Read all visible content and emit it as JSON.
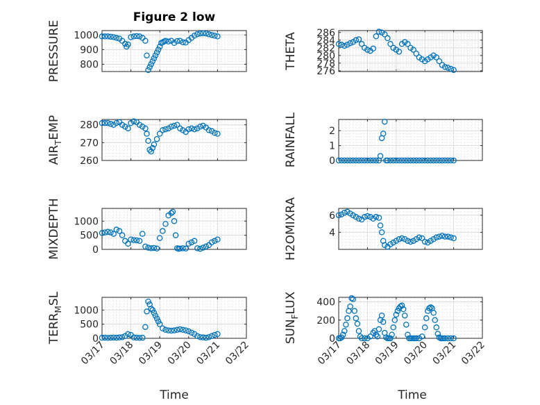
{
  "figure": {
    "title": "Figure 2 low",
    "xlabel": "Time",
    "marker_color": "#0072bd",
    "x_ticks": [
      "03/17",
      "03/18",
      "03/19",
      "03/20",
      "03/21",
      "03/22"
    ]
  },
  "chart_data": [
    {
      "id": "pressure",
      "type": "scatter",
      "ylabel": "PRESSURE",
      "ylim": [
        750,
        1030
      ],
      "yticks": [
        800,
        900,
        1000
      ],
      "xlim": [
        0,
        5
      ],
      "x": [
        0,
        0.1,
        0.2,
        0.3,
        0.4,
        0.5,
        0.6,
        0.7,
        0.8,
        0.85,
        0.9,
        1.0,
        1.1,
        1.2,
        1.3,
        1.4,
        1.5,
        1.55,
        1.6,
        1.65,
        1.7,
        1.75,
        1.8,
        1.85,
        1.9,
        1.95,
        2.0,
        2.05,
        2.1,
        2.15,
        2.2,
        2.3,
        2.4,
        2.5,
        2.6,
        2.7,
        2.8,
        2.9,
        3.0,
        3.1,
        3.2,
        3.3,
        3.4,
        3.5,
        3.6,
        3.7,
        3.8,
        3.9,
        4.0
      ],
      "y": [
        990,
        990,
        990,
        988,
        985,
        980,
        975,
        960,
        940,
        920,
        935,
        985,
        990,
        992,
        990,
        980,
        960,
        860,
        760,
        780,
        800,
        820,
        840,
        860,
        880,
        900,
        920,
        945,
        950,
        955,
        960,
        955,
        960,
        945,
        958,
        960,
        950,
        948,
        965,
        980,
        995,
        1005,
        1010,
        1012,
        1010,
        1005,
        1000,
        995,
        990
      ]
    },
    {
      "id": "theta",
      "type": "scatter",
      "ylabel": "THETA",
      "ylim": [
        275.8,
        286.5
      ],
      "yticks": [
        276,
        278,
        280,
        282,
        284,
        286
      ],
      "xlim": [
        0,
        5
      ],
      "x": [
        0,
        0.1,
        0.2,
        0.3,
        0.4,
        0.5,
        0.6,
        0.7,
        0.8,
        0.9,
        1.0,
        1.1,
        1.2,
        1.3,
        1.4,
        1.5,
        1.6,
        1.7,
        1.8,
        1.9,
        2.0,
        2.1,
        2.2,
        2.3,
        2.4,
        2.5,
        2.6,
        2.7,
        2.8,
        2.9,
        3.0,
        3.1,
        3.2,
        3.3,
        3.4,
        3.5,
        3.6,
        3.7,
        3.8,
        3.9,
        4.0
      ],
      "y": [
        283,
        282.8,
        282.5,
        282.8,
        283.2,
        283.5,
        284,
        284.2,
        283,
        282,
        281.5,
        281.2,
        281.8,
        285,
        286.2,
        286,
        285.5,
        284.5,
        283,
        282,
        281.5,
        281,
        283,
        283.5,
        283,
        282,
        281.5,
        280.5,
        279.5,
        279,
        278.5,
        279,
        279.5,
        280,
        279.5,
        278.5,
        277.5,
        277,
        276.8,
        276.5,
        276.2
      ]
    },
    {
      "id": "air_temp",
      "type": "scatter",
      "ylabel": "AIR_TEMP",
      "ylabel_main": "AIR",
      "ylabel_sub": "T",
      "ylabel_rest": "EMP",
      "ylim": [
        260,
        283
      ],
      "yticks": [
        260,
        270,
        280
      ],
      "xlim": [
        0,
        5
      ],
      "x": [
        0,
        0.1,
        0.2,
        0.3,
        0.4,
        0.5,
        0.6,
        0.7,
        0.8,
        0.9,
        1.0,
        1.1,
        1.2,
        1.3,
        1.4,
        1.5,
        1.55,
        1.6,
        1.65,
        1.7,
        1.75,
        1.8,
        1.9,
        2.0,
        2.1,
        2.2,
        2.3,
        2.4,
        2.5,
        2.6,
        2.7,
        2.8,
        2.9,
        3.0,
        3.1,
        3.2,
        3.3,
        3.4,
        3.5,
        3.6,
        3.7,
        3.8,
        3.9,
        4.0
      ],
      "y": [
        281,
        281,
        281,
        280.5,
        280,
        281,
        281.5,
        280,
        279,
        278,
        281,
        282,
        281.5,
        280,
        279,
        278,
        275,
        271,
        266,
        265,
        267,
        269,
        272,
        275,
        277,
        277.5,
        278,
        279,
        279.5,
        280,
        278,
        277,
        276,
        277.5,
        278,
        277.5,
        278,
        279,
        279.5,
        278.5,
        277,
        276.5,
        275.5,
        275
      ]
    },
    {
      "id": "rainfall",
      "type": "scatter",
      "ylabel": "RAINFALL",
      "ylim": [
        0,
        2.75
      ],
      "yticks": [
        0,
        1,
        2
      ],
      "xlim": [
        0,
        5
      ],
      "x": [
        0,
        0.1,
        0.2,
        0.3,
        0.4,
        0.5,
        0.6,
        0.7,
        0.8,
        0.9,
        1.0,
        1.1,
        1.2,
        1.3,
        1.4,
        1.45,
        1.5,
        1.55,
        1.6,
        1.65,
        1.7,
        1.8,
        1.9,
        2.0,
        2.1,
        2.2,
        2.3,
        2.4,
        2.5,
        2.6,
        2.7,
        2.8,
        2.9,
        3.0,
        3.1,
        3.2,
        3.3,
        3.4,
        3.5,
        3.6,
        3.7,
        3.8,
        3.9,
        4.0
      ],
      "y": [
        0,
        0,
        0,
        0,
        0,
        0,
        0,
        0,
        0,
        0,
        0,
        0,
        0,
        0,
        0,
        0.3,
        1.5,
        1.8,
        2.6,
        0,
        0,
        0,
        0,
        0,
        0,
        0,
        0,
        0,
        0,
        0,
        0,
        0,
        0,
        0,
        0,
        0,
        0,
        0,
        0,
        0,
        0,
        0,
        0,
        0
      ]
    },
    {
      "id": "mixdepth",
      "type": "scatter",
      "ylabel": "MIXDEPTH",
      "ylim": [
        0,
        1450
      ],
      "yticks": [
        0,
        500,
        1000
      ],
      "xlim": [
        0,
        5
      ],
      "x": [
        0,
        0.1,
        0.2,
        0.3,
        0.4,
        0.5,
        0.6,
        0.7,
        0.8,
        0.9,
        1.0,
        1.1,
        1.2,
        1.3,
        1.4,
        1.5,
        1.6,
        1.7,
        1.8,
        1.9,
        2.0,
        2.1,
        2.2,
        2.3,
        2.4,
        2.45,
        2.5,
        2.55,
        2.6,
        2.65,
        2.7,
        2.8,
        2.9,
        3.0,
        3.1,
        3.2,
        3.3,
        3.4,
        3.5,
        3.6,
        3.7,
        3.8,
        3.9,
        4.0
      ],
      "y": [
        580,
        600,
        620,
        600,
        550,
        700,
        650,
        500,
        300,
        200,
        350,
        330,
        320,
        300,
        550,
        100,
        60,
        40,
        50,
        30,
        400,
        650,
        900,
        1200,
        1280,
        1330,
        1000,
        500,
        40,
        20,
        30,
        40,
        30,
        200,
        250,
        300,
        40,
        20,
        60,
        100,
        150,
        250,
        300,
        350
      ]
    },
    {
      "id": "h2omixra",
      "type": "scatter",
      "ylabel": "H2OMIXRA",
      "ylim": [
        2,
        6.8
      ],
      "yticks": [
        4,
        6
      ],
      "xlim": [
        0,
        5
      ],
      "x": [
        0,
        0.1,
        0.2,
        0.3,
        0.4,
        0.5,
        0.6,
        0.7,
        0.8,
        0.9,
        1.0,
        1.1,
        1.2,
        1.3,
        1.4,
        1.45,
        1.5,
        1.55,
        1.6,
        1.7,
        1.8,
        1.9,
        2.0,
        2.1,
        2.2,
        2.3,
        2.4,
        2.5,
        2.6,
        2.7,
        2.8,
        2.9,
        3.0,
        3.1,
        3.2,
        3.3,
        3.4,
        3.5,
        3.6,
        3.7,
        3.8,
        3.9,
        4.0
      ],
      "y": [
        6,
        6.1,
        6.3,
        6.4,
        6.2,
        6.0,
        5.8,
        5.6,
        5.5,
        5.8,
        5.9,
        5.8,
        5.6,
        5.8,
        5.7,
        4.8,
        4.0,
        3.0,
        2.5,
        2.3,
        2.6,
        2.8,
        3.0,
        3.2,
        3.3,
        3.2,
        3.0,
        2.9,
        3.0,
        3.2,
        3.4,
        3.3,
        2.9,
        2.8,
        3.0,
        3.2,
        3.4,
        3.5,
        3.6,
        3.5,
        3.5,
        3.4,
        3.3
      ]
    },
    {
      "id": "terr_msl",
      "type": "scatter",
      "ylabel": "TERR_MSL",
      "ylabel_main": "TERR",
      "ylabel_sub": "M",
      "ylabel_rest": "SL",
      "ylim": [
        0,
        1450
      ],
      "yticks": [
        0,
        500,
        1000
      ],
      "xlim": [
        0,
        5
      ],
      "x": [
        0,
        0.1,
        0.2,
        0.3,
        0.4,
        0.5,
        0.6,
        0.7,
        0.8,
        0.9,
        1.0,
        1.1,
        1.2,
        1.3,
        1.4,
        1.5,
        1.55,
        1.6,
        1.65,
        1.7,
        1.75,
        1.8,
        1.85,
        1.9,
        1.95,
        2.0,
        2.1,
        2.2,
        2.3,
        2.4,
        2.5,
        2.6,
        2.7,
        2.8,
        2.9,
        3.0,
        3.1,
        3.2,
        3.3,
        3.4,
        3.5,
        3.6,
        3.7,
        3.8,
        3.9,
        4.0
      ],
      "y": [
        20,
        20,
        15,
        20,
        25,
        20,
        30,
        40,
        80,
        150,
        120,
        30,
        20,
        15,
        20,
        400,
        950,
        1300,
        1200,
        1050,
        1000,
        900,
        800,
        700,
        600,
        500,
        350,
        300,
        280,
        270,
        280,
        300,
        320,
        300,
        280,
        250,
        200,
        150,
        80,
        40,
        30,
        20,
        40,
        80,
        120,
        150
      ]
    },
    {
      "id": "sun_flux",
      "type": "scatter",
      "ylabel": "SUN_FLUX",
      "ylabel_main": "SUN",
      "ylabel_sub": "F",
      "ylabel_rest": "LUX",
      "ylim": [
        0,
        450
      ],
      "yticks": [
        0,
        200,
        400
      ],
      "xlim": [
        0,
        5
      ],
      "x": [
        0,
        0.05,
        0.1,
        0.15,
        0.2,
        0.25,
        0.3,
        0.35,
        0.4,
        0.45,
        0.5,
        0.55,
        0.6,
        0.65,
        0.7,
        0.75,
        0.8,
        0.9,
        1.0,
        1.1,
        1.2,
        1.25,
        1.3,
        1.35,
        1.4,
        1.45,
        1.5,
        1.55,
        1.6,
        1.65,
        1.7,
        1.75,
        1.8,
        1.85,
        1.9,
        1.95,
        2.0,
        2.05,
        2.1,
        2.15,
        2.2,
        2.25,
        2.3,
        2.35,
        2.4,
        2.45,
        2.5,
        2.55,
        2.6,
        2.65,
        2.7,
        2.8,
        2.9,
        3.0,
        3.05,
        3.1,
        3.15,
        3.2,
        3.25,
        3.3,
        3.35,
        3.4,
        3.45,
        3.5,
        3.55,
        3.6,
        3.65,
        3.7,
        3.8,
        3.9,
        4.0
      ],
      "y": [
        0,
        0,
        10,
        40,
        80,
        150,
        220,
        300,
        350,
        440,
        430,
        300,
        220,
        160,
        80,
        20,
        0,
        0,
        0,
        20,
        60,
        80,
        40,
        20,
        100,
        200,
        250,
        180,
        60,
        10,
        0,
        0,
        0,
        40,
        120,
        200,
        260,
        300,
        330,
        350,
        360,
        320,
        250,
        150,
        40,
        0,
        0,
        0,
        0,
        0,
        0,
        0,
        20,
        120,
        220,
        300,
        330,
        340,
        330,
        280,
        200,
        120,
        50,
        10,
        0,
        0,
        0,
        0,
        0,
        0,
        0
      ]
    }
  ]
}
